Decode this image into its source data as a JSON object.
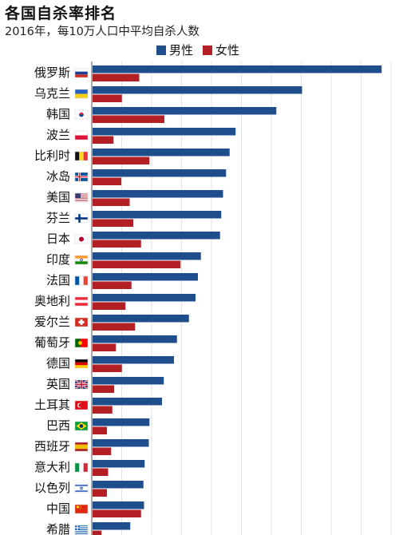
{
  "chart_data": {
    "type": "bar",
    "orientation": "horizontal",
    "title": "各国自杀率排名",
    "subtitle": "2016年，每10万人口中平均自杀人数",
    "legend_position": "top",
    "grid": true,
    "xlim": [
      0,
      50
    ],
    "colors": {
      "male": "#1f4e8c",
      "female": "#b21f24"
    },
    "categories": [
      "俄罗斯",
      "乌克兰",
      "韩国",
      "波兰",
      "比利时",
      "冰岛",
      "美国",
      "芬兰",
      "日本",
      "印度",
      "法国",
      "奥地利",
      "爱尔兰",
      "葡萄牙",
      "德国",
      "英国",
      "土耳其",
      "巴西",
      "西班牙",
      "意大利",
      "以色列",
      "中国",
      "希腊"
    ],
    "flags": [
      "flag-russia",
      "flag-ukraine",
      "flag-south-korea",
      "flag-poland",
      "flag-belgium",
      "flag-iceland",
      "flag-usa",
      "flag-finland",
      "flag-japan",
      "flag-india",
      "flag-france",
      "flag-austria",
      "flag-ireland",
      "flag-portugal",
      "flag-germany",
      "flag-uk",
      "flag-turkey",
      "flag-brazil",
      "flag-spain",
      "flag-italy",
      "flag-israel",
      "flag-china",
      "flag-greece"
    ],
    "series": [
      {
        "name": "男性",
        "values": [
          48.3,
          35.0,
          30.7,
          23.9,
          22.9,
          22.3,
          21.8,
          21.5,
          21.3,
          18.1,
          17.6,
          17.2,
          16.1,
          14.1,
          13.6,
          11.9,
          11.6,
          9.5,
          9.4,
          8.7,
          8.5,
          8.6,
          6.3
        ]
      },
      {
        "name": "女性",
        "values": [
          7.8,
          4.9,
          12.0,
          3.5,
          9.5,
          4.8,
          6.2,
          6.8,
          8.1,
          14.7,
          6.5,
          5.5,
          7.1,
          3.9,
          4.9,
          3.6,
          3.3,
          2.4,
          3.1,
          2.6,
          2.4,
          8.1,
          1.5
        ]
      }
    ]
  }
}
